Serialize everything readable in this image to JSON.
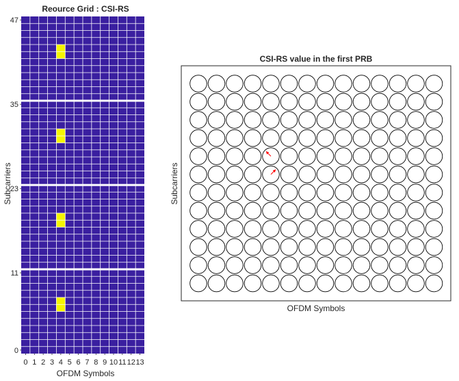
{
  "figure": {
    "left_panel": {
      "chart_data": {
        "type": "heatmap",
        "title": "Reource Grid : CSI-RS",
        "xlabel": "OFDM Symbols",
        "ylabel": "Subcarriers",
        "x_range": [
          0,
          13
        ],
        "y_range": [
          0,
          47
        ],
        "x_ticks": [
          "0",
          "1",
          "2",
          "3",
          "4",
          "5",
          "6",
          "7",
          "8",
          "9",
          "10",
          "11",
          "12",
          "13"
        ],
        "y_ticks": [
          "0",
          "11",
          "23",
          "35",
          "47"
        ],
        "background_color": "#3a1fa0",
        "grid_line_color": "#ffffff",
        "prb_separator_rows": [
          12,
          24,
          36
        ],
        "csi_rs_color": "#f5f500",
        "csi_rs_cells": [
          {
            "symbol": 4,
            "subcarrier": 6
          },
          {
            "symbol": 4,
            "subcarrier": 7
          },
          {
            "symbol": 4,
            "subcarrier": 18
          },
          {
            "symbol": 4,
            "subcarrier": 19
          },
          {
            "symbol": 4,
            "subcarrier": 30
          },
          {
            "symbol": 4,
            "subcarrier": 31
          },
          {
            "symbol": 4,
            "subcarrier": 42
          },
          {
            "symbol": 4,
            "subcarrier": 43
          }
        ]
      }
    },
    "right_panel": {
      "chart_data": {
        "type": "scatter",
        "title": "CSI-RS value in the first PRB",
        "xlabel": "OFDM Symbols",
        "ylabel": "Subcarriers",
        "columns": 14,
        "rows": 12,
        "marker": "circle",
        "arrow_color": "#ff0000",
        "arrows": [
          {
            "symbol": 4,
            "subcarrier": 7,
            "direction": "up-left"
          },
          {
            "symbol": 4,
            "subcarrier": 6,
            "direction": "up-right"
          }
        ]
      }
    }
  }
}
